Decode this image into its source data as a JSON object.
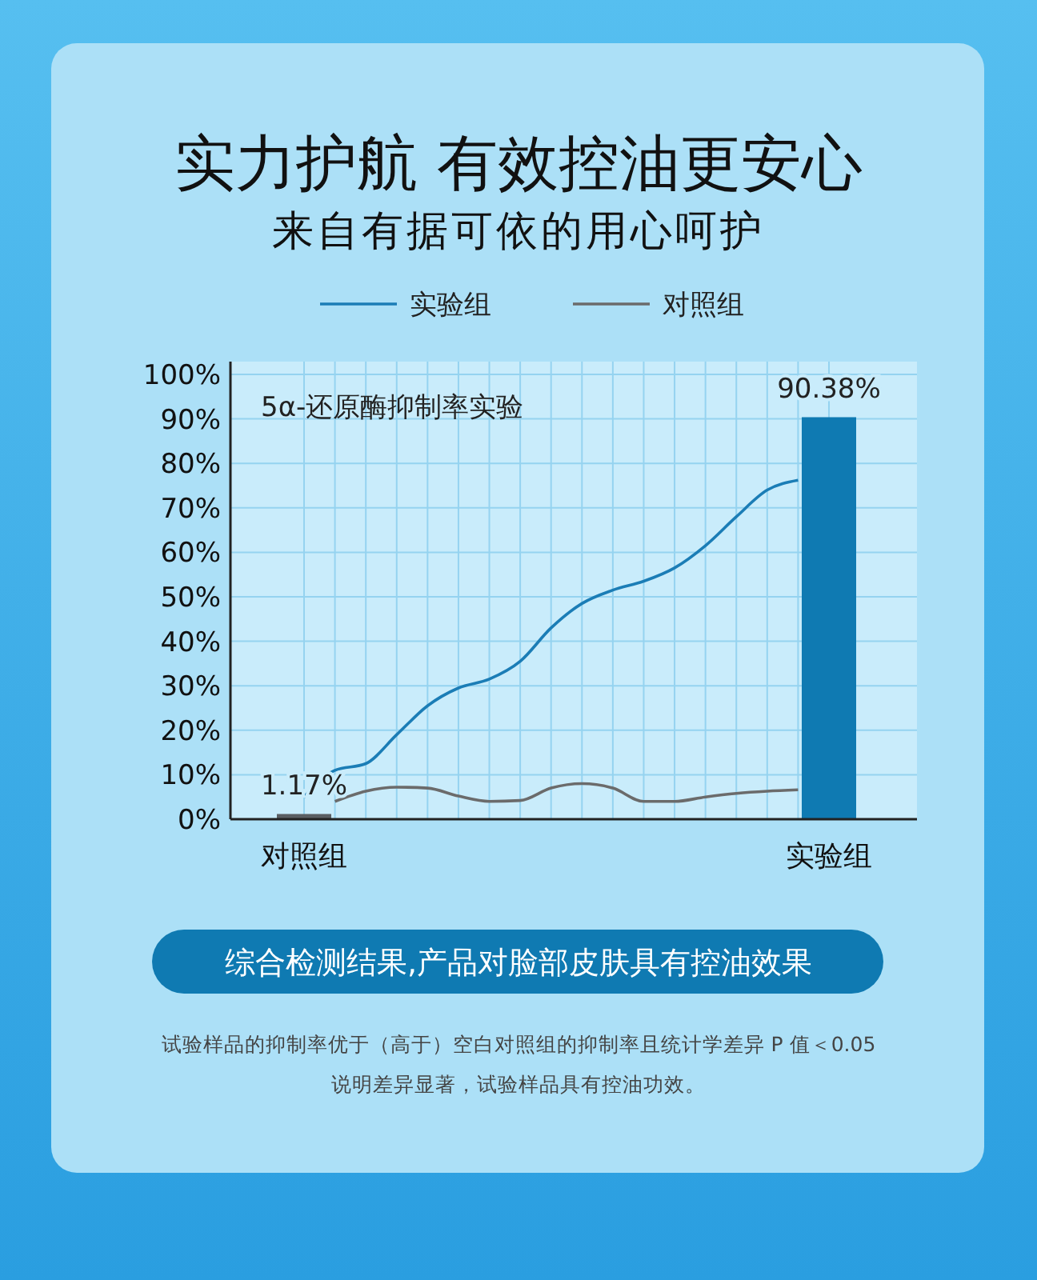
{
  "chart_data": {
    "type": "bar",
    "title": "实力护航 有效控油更安心",
    "subtitle": "来自有据可依的用心呵护",
    "categories": [
      "对照组",
      null,
      null,
      null,
      null,
      null,
      null,
      null,
      null,
      null,
      null,
      null,
      null,
      null,
      null,
      null,
      null,
      "实验组"
    ],
    "series": [
      {
        "colors": [
          "#5a5e62",
          null,
          null,
          null,
          null,
          null,
          null,
          null,
          null,
          null,
          null,
          null,
          null,
          null,
          null,
          null,
          null,
          "#0f7ab2"
        ],
        "values": [
          1.17,
          null,
          null,
          null,
          null,
          null,
          null,
          null,
          null,
          null,
          null,
          null,
          null,
          null,
          null,
          null,
          null,
          90.38
        ],
        "value_labels": [
          "1.17%",
          null,
          null,
          null,
          null,
          null,
          null,
          null,
          null,
          null,
          null,
          null,
          null,
          null,
          null,
          null,
          null,
          "90.38%"
        ]
      },
      {
        "type": "line",
        "name": "实验组",
        "color": "#1b7db6",
        "values": [
          5,
          11,
          12.5,
          19,
          25.5,
          29.5,
          31.5,
          35.5,
          43,
          48.5,
          51.5,
          53.5,
          56.5,
          61.5,
          68,
          74,
          76.2,
          null
        ]
      },
      {
        "type": "line",
        "name": "对照组",
        "color": "#6b6b6b",
        "values": [
          null,
          4,
          6.3,
          7.2,
          7,
          5.2,
          4,
          4.2,
          7,
          8,
          7,
          4,
          4,
          5,
          5.8,
          6.3,
          6.6,
          null
        ]
      }
    ],
    "ylim": [
      0,
      100
    ],
    "yticks": [
      {
        "value": 0,
        "label": "0%"
      },
      {
        "value": 10,
        "label": "10%"
      },
      {
        "value": 20,
        "label": "20%"
      },
      {
        "value": 30,
        "label": "30%"
      },
      {
        "value": 40,
        "label": "40%"
      },
      {
        "value": 50,
        "label": "50%"
      },
      {
        "value": 60,
        "label": "60%"
      },
      {
        "value": 70,
        "label": "70%"
      },
      {
        "value": 80,
        "label": "80%"
      },
      {
        "value": 90,
        "label": "90%"
      },
      {
        "value": 100,
        "label": "100%"
      }
    ],
    "grid": true,
    "legend": "top",
    "marker": "none",
    "annotations": [
      "5α-还原酶抑制率实验",
      "综合检测结果,产品对脸部皮肤具有控油效果",
      "试验样品的抑制率优于（高于）空白对照组的抑制率且统计学差异 P 值＜0.05",
      "说明差异显著，试验样品具有控油功效。"
    ]
  }
}
